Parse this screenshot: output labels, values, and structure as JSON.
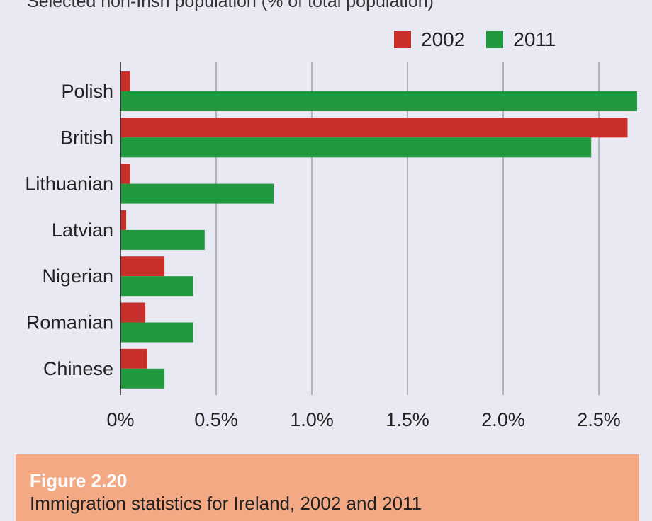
{
  "chart_data": {
    "type": "bar",
    "orientation": "horizontal",
    "title": "Selected non-Irish population (% of total population)",
    "categories": [
      "Polish",
      "British",
      "Lithuanian",
      "Latvian",
      "Nigerian",
      "Romanian",
      "Chinese"
    ],
    "series": [
      {
        "name": "2002",
        "color": "#c9302c",
        "values": [
          0.05,
          2.65,
          0.05,
          0.03,
          0.23,
          0.13,
          0.14
        ]
      },
      {
        "name": "2011",
        "color": "#21993f",
        "values": [
          2.7,
          2.46,
          0.8,
          0.44,
          0.38,
          0.38,
          0.23
        ]
      }
    ],
    "xlim": [
      0,
      2.7
    ],
    "xticks": [
      0,
      0.5,
      1.0,
      1.5,
      2.0,
      2.5
    ],
    "xtick_labels": [
      "0%",
      "0.5%",
      "1.0%",
      "1.5%",
      "2.0%",
      "2.5%"
    ],
    "grid": "vertical",
    "legend_position": "top-right"
  },
  "caption": {
    "heading": "Figure 2.20",
    "text": "Immigration statistics for Ireland, 2002 and 2011"
  }
}
